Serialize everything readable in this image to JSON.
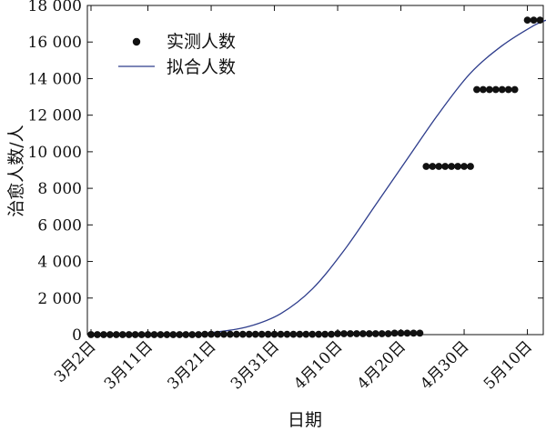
{
  "chart_data": {
    "type": "scatter",
    "xlabel": "日期",
    "ylabel": "治愈人数/人",
    "ylim": [
      0,
      18000
    ],
    "xlim": [
      0,
      80
    ],
    "yticks": [
      0,
      2000,
      4000,
      6000,
      8000,
      10000,
      12000,
      14000,
      16000,
      18000
    ],
    "ytick_labels": [
      "0",
      "2 000",
      "4 000",
      "6 000",
      "8 000",
      "10 000",
      "12 000",
      "14 000",
      "16 000",
      "18 000"
    ],
    "xticks": [
      {
        "x": 0,
        "label": "3月2日"
      },
      {
        "x": 9,
        "label": "3月11日"
      },
      {
        "x": 19,
        "label": "3月21日"
      },
      {
        "x": 29,
        "label": "3月31日"
      },
      {
        "x": 39,
        "label": "4月10日"
      },
      {
        "x": 49,
        "label": "4月20日"
      },
      {
        "x": 59,
        "label": "4月30日"
      },
      {
        "x": 69,
        "label": "5月10日"
      }
    ],
    "legend": {
      "position": "top-left",
      "entries": [
        "实测人数",
        "拟合人数"
      ]
    },
    "series": [
      {
        "name": "实测人数",
        "type": "scatter",
        "color": "#111111",
        "segments": [
          {
            "x_start": 0,
            "x_end": 17,
            "value": 0
          },
          {
            "x_start": 18,
            "x_end": 38,
            "value": 20
          },
          {
            "x_start": 39,
            "x_end": 47,
            "value": 50
          },
          {
            "x_start": 48,
            "x_end": 52,
            "value": 80
          },
          {
            "x_start": 53,
            "x_end": 60,
            "value": 9200
          },
          {
            "x_start": 61,
            "x_end": 67,
            "value": 13400
          },
          {
            "x_start": 69,
            "x_end": 71,
            "value": 17200
          }
        ]
      },
      {
        "name": "拟合人数",
        "type": "line",
        "color": "#2e3d8c",
        "x": [
          0,
          10,
          15,
          20,
          25,
          30,
          35,
          40,
          45,
          50,
          55,
          60,
          65,
          70,
          72
        ],
        "values": [
          0,
          10,
          40,
          150,
          450,
          1150,
          2500,
          4600,
          7100,
          9600,
          12100,
          14300,
          15800,
          16900,
          17200
        ]
      }
    ]
  }
}
